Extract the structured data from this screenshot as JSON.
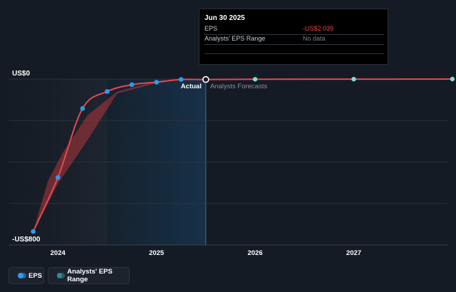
{
  "chart_data": {
    "type": "line",
    "y_labels": {
      "top": "US$0",
      "bottom": "-US$800"
    },
    "ylim": [
      -800,
      0
    ],
    "xlim": [
      2023.5,
      2027.95
    ],
    "x_ticks": [
      {
        "value": 2024,
        "label": "2024"
      },
      {
        "value": 2025,
        "label": "2025"
      },
      {
        "value": 2026,
        "label": "2026"
      },
      {
        "value": 2027,
        "label": "2027"
      }
    ],
    "actual_end": 2025.5,
    "shade_start": 2024.5,
    "section_labels": {
      "actual": "Actual",
      "forecast": "Analysts Forecasts"
    },
    "series": [
      {
        "name": "EPS",
        "color": "#e8474e",
        "points": [
          {
            "x": 2023.75,
            "y": -735,
            "marker": true
          },
          {
            "x": 2024.0,
            "y": -475,
            "marker": true
          },
          {
            "x": 2024.25,
            "y": -142,
            "marker": true
          },
          {
            "x": 2024.5,
            "y": -60,
            "marker": true
          },
          {
            "x": 2024.75,
            "y": -27,
            "marker": true
          },
          {
            "x": 2025.0,
            "y": -15,
            "marker": true
          },
          {
            "x": 2025.25,
            "y": -2,
            "marker": true
          },
          {
            "x": 2025.5,
            "y": -2.039,
            "marker": true,
            "highlight": true
          },
          {
            "x": 2026.0,
            "y": -1,
            "marker": true,
            "forecast": true
          },
          {
            "x": 2027.0,
            "y": -0.5,
            "marker": true,
            "forecast": true
          },
          {
            "x": 2028.0,
            "y": 0,
            "marker": true,
            "forecast": true
          }
        ]
      }
    ],
    "range_band": {
      "name": "Analysts' EPS Range",
      "color": "#b3363d",
      "upper": [
        {
          "x": 2023.75,
          "y": -735
        },
        {
          "x": 2023.9,
          "y": -490
        },
        {
          "x": 2024.05,
          "y": -355
        },
        {
          "x": 2024.3,
          "y": -175
        },
        {
          "x": 2024.6,
          "y": -60
        },
        {
          "x": 2025.0,
          "y": -10
        },
        {
          "x": 2025.25,
          "y": -2
        }
      ],
      "lower": [
        {
          "x": 2025.25,
          "y": -2
        },
        {
          "x": 2025.0,
          "y": -20
        },
        {
          "x": 2024.6,
          "y": -70
        },
        {
          "x": 2024.3,
          "y": -295
        },
        {
          "x": 2024.0,
          "y": -505
        },
        {
          "x": 2023.75,
          "y": -735
        }
      ]
    }
  },
  "tooltip": {
    "title": "Jun 30 2025",
    "rows": [
      {
        "label": "EPS",
        "value": "-US$2.039",
        "color": "#e8474e"
      },
      {
        "label": "Analysts' EPS Range",
        "value": "No data",
        "color": "#7a8089"
      }
    ]
  },
  "legend": {
    "items": [
      {
        "label": "EPS",
        "color": "#2f9bf0"
      },
      {
        "label": "Analysts' EPS Range",
        "color": "#2e8a9a"
      }
    ]
  },
  "colors": {
    "marker": "#2f9bf0",
    "forecast_marker": "#7ee0d2",
    "grid": "#2b323d"
  }
}
